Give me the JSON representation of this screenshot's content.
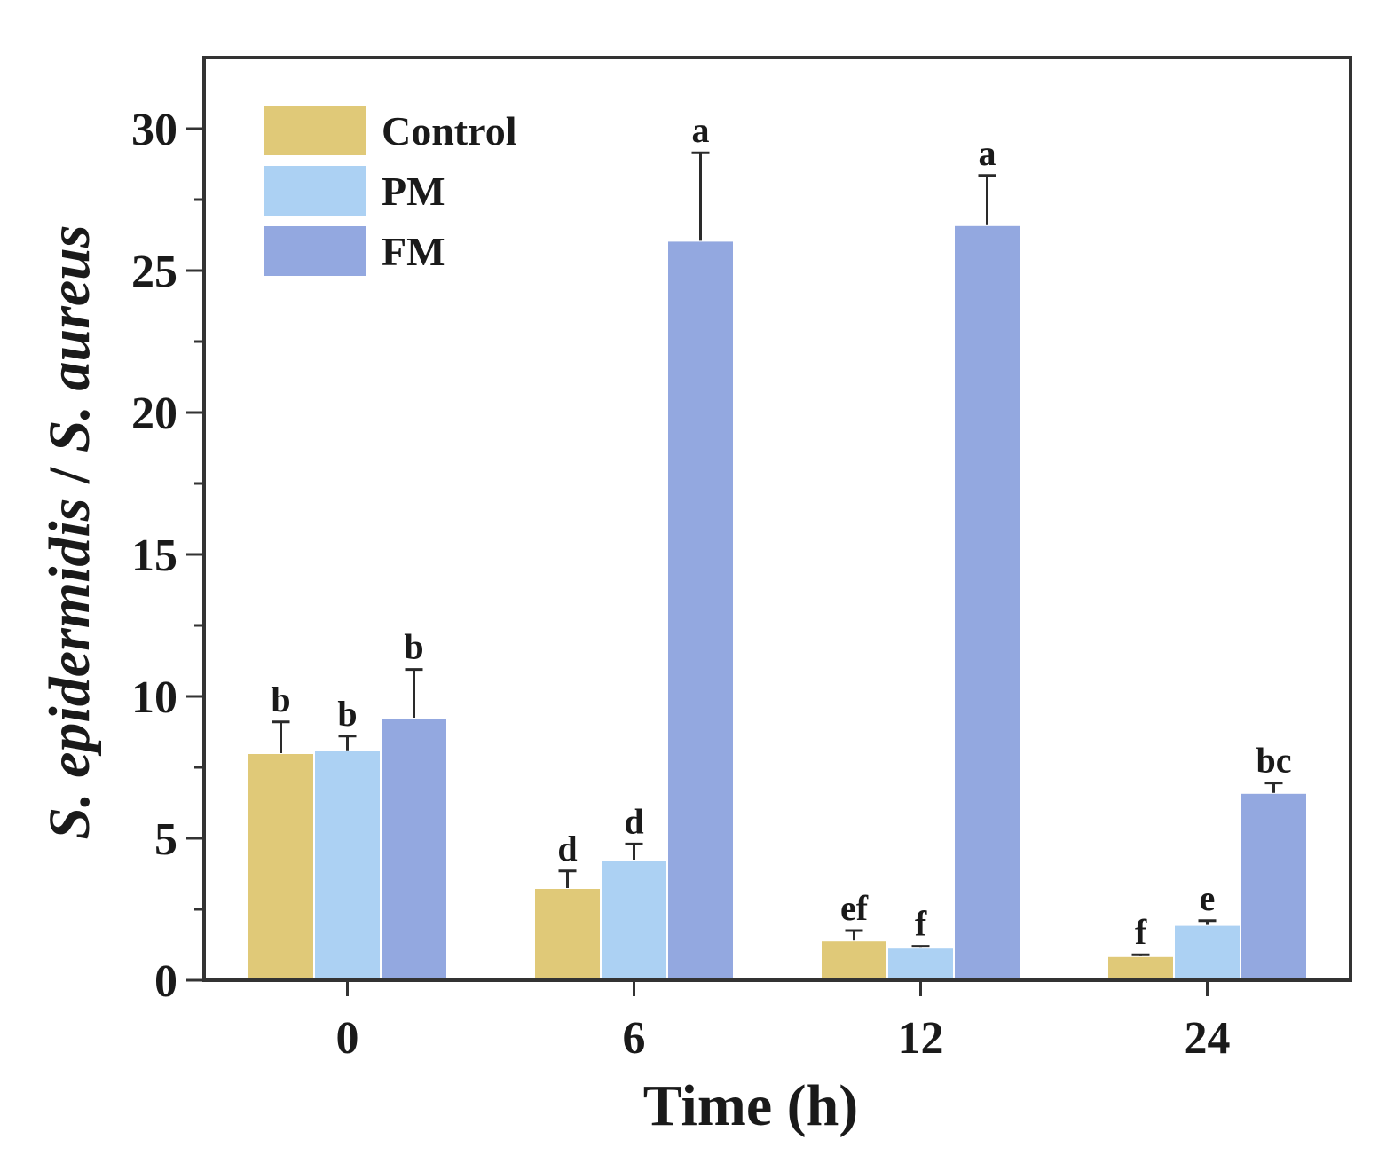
{
  "chart_data": {
    "type": "bar",
    "categories": [
      "0",
      "6",
      "12",
      "24"
    ],
    "series": [
      {
        "name": "Control",
        "color": "#e0c978",
        "values": [
          8.0,
          3.25,
          1.4,
          0.85
        ],
        "errors": [
          1.1,
          0.6,
          0.35,
          0.05
        ],
        "labels": [
          "b",
          "d",
          "ef",
          "f"
        ]
      },
      {
        "name": "PM",
        "color": "#acd1f3",
        "values": [
          8.1,
          4.25,
          1.15,
          1.95
        ],
        "errors": [
          0.5,
          0.55,
          0.05,
          0.15
        ],
        "labels": [
          "b",
          "d",
          "f",
          "e"
        ]
      },
      {
        "name": "FM",
        "color": "#93a8e0",
        "values": [
          9.25,
          26.05,
          26.6,
          6.6
        ],
        "errors": [
          1.7,
          3.1,
          1.75,
          0.35
        ],
        "labels": [
          "b",
          "a",
          "a",
          "bc"
        ]
      }
    ],
    "xlabel": "Time (h)",
    "ylabel": {
      "part1": "S. epidermidis",
      "separator": " / ",
      "part2": "S. aureus"
    },
    "ylim": [
      0,
      32.5
    ],
    "yticks": [
      "0",
      "5",
      "10",
      "15",
      "20",
      "25",
      "30"
    ],
    "legend_position": "top-left",
    "grid": false
  }
}
